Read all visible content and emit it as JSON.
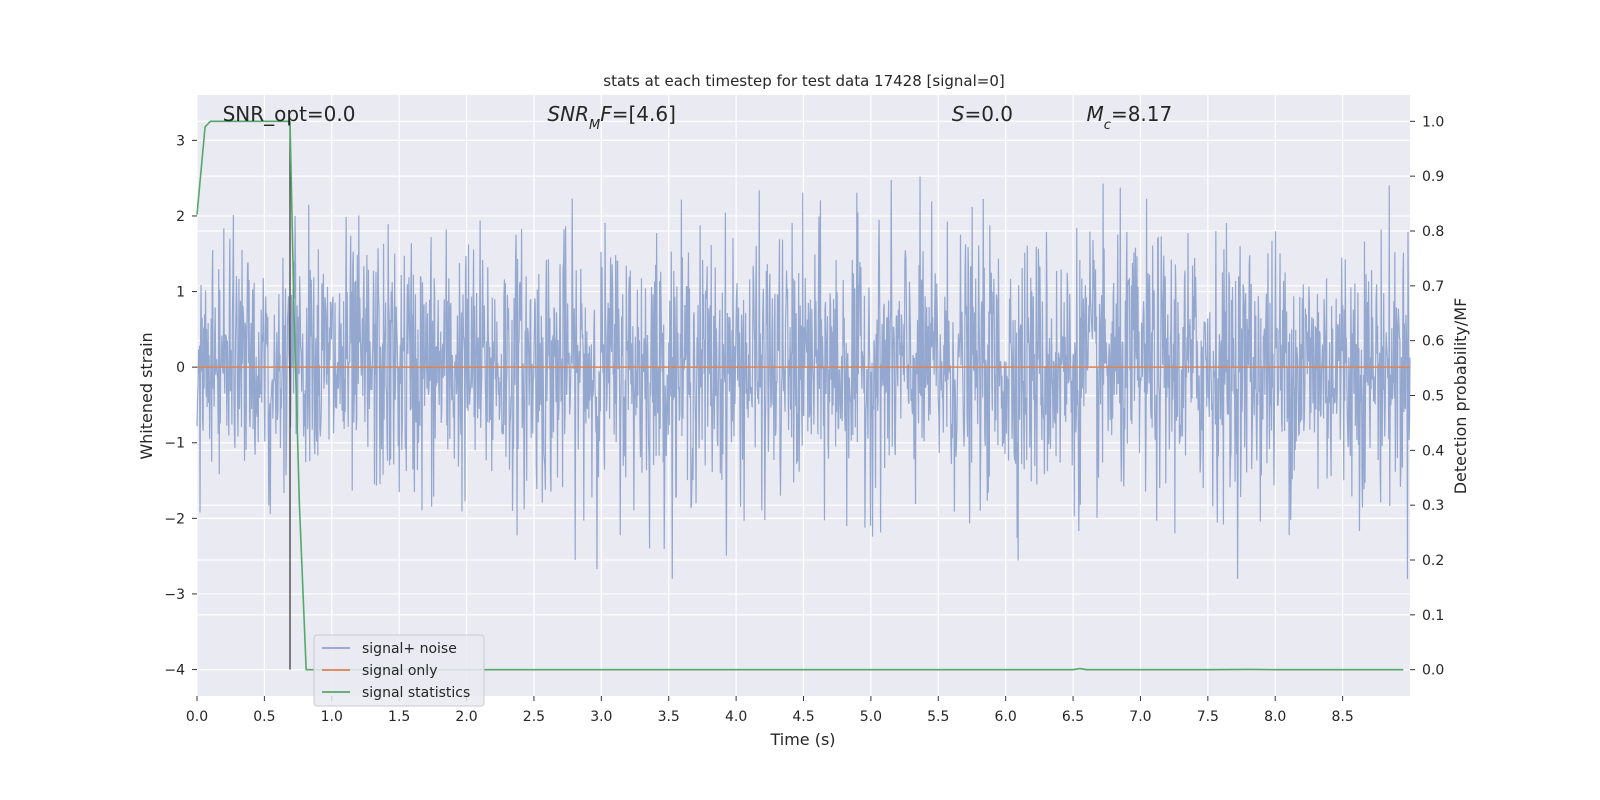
{
  "chart_data": {
    "type": "line",
    "title": "stats at each timestep for test data 17428 [signal=0]",
    "xlabel": "Time (s)",
    "ylabel_left": "Whitened strain",
    "ylabel_right": "Detection probability/MF",
    "xlim": [
      0.0,
      9.0
    ],
    "ylim_left": [
      -4.35,
      3.6
    ],
    "ylim_right": [
      -0.048,
      1.048
    ],
    "x_ticks": [
      "0.0",
      "0.5",
      "1.0",
      "1.5",
      "2.0",
      "2.5",
      "3.0",
      "3.5",
      "4.0",
      "4.5",
      "5.0",
      "5.5",
      "6.0",
      "6.5",
      "7.0",
      "7.5",
      "8.0",
      "8.5"
    ],
    "y_ticks_left": [
      "−4",
      "−3",
      "−2",
      "−1",
      "0",
      "1",
      "2",
      "3"
    ],
    "y_ticks_right": [
      "0.0",
      "0.1",
      "0.2",
      "0.3",
      "0.4",
      "0.5",
      "0.6",
      "0.7",
      "0.8",
      "0.9",
      "1.0"
    ],
    "grid": true,
    "background": "#eaeaf2",
    "annotations": [
      {
        "label": "SNR_opt",
        "value": "=0.0",
        "x": 0.19
      },
      {
        "label": "SNR_MF",
        "value": "=[4.6]",
        "x": 2.6
      },
      {
        "label": "S",
        "value": "=0.0",
        "x": 5.6
      },
      {
        "label": "M_c",
        "value": "=8.17",
        "x": 6.6
      }
    ],
    "vertical_marker_x": 0.69,
    "legend": {
      "placement": "lower-left",
      "entries": [
        {
          "name": "signal+ noise",
          "color": "#8fa3cc"
        },
        {
          "name": "signal only",
          "color": "#dd8452"
        },
        {
          "name": "signal statistics",
          "color": "#55a868"
        }
      ]
    },
    "series": [
      {
        "name": "signal+ noise",
        "axis": "left",
        "color": "#8fa3cc",
        "description_values": "dense white-noise strain, roughly within [-2.7, 3.2] with typical band [-1.1, 1.1]",
        "range": [
          -2.8,
          3.3
        ]
      },
      {
        "name": "signal only",
        "axis": "left",
        "color": "#dd8452",
        "x": [
          0.0,
          9.0
        ],
        "y": [
          0.0,
          0.0
        ]
      },
      {
        "name": "signal statistics",
        "axis": "right",
        "color": "#55a868",
        "x": [
          0.0,
          0.06,
          0.1,
          0.15,
          0.3,
          0.5,
          0.62,
          0.69,
          0.72,
          0.76,
          0.81,
          1.0,
          2.0,
          3.0,
          4.0,
          5.0,
          6.0,
          6.5,
          6.55,
          6.6,
          7.0,
          7.5,
          7.8,
          8.0,
          8.5,
          8.95
        ],
        "y": [
          0.83,
          0.99,
          1.0,
          1.0,
          1.0,
          1.0,
          1.0,
          1.0,
          0.65,
          0.3,
          0.0,
          0.0,
          0.0,
          0.0,
          0.0,
          0.0,
          0.0,
          0.0,
          0.002,
          0.0,
          0.0,
          0.0,
          0.0005,
          0.0,
          0.0,
          0.0
        ]
      }
    ]
  }
}
